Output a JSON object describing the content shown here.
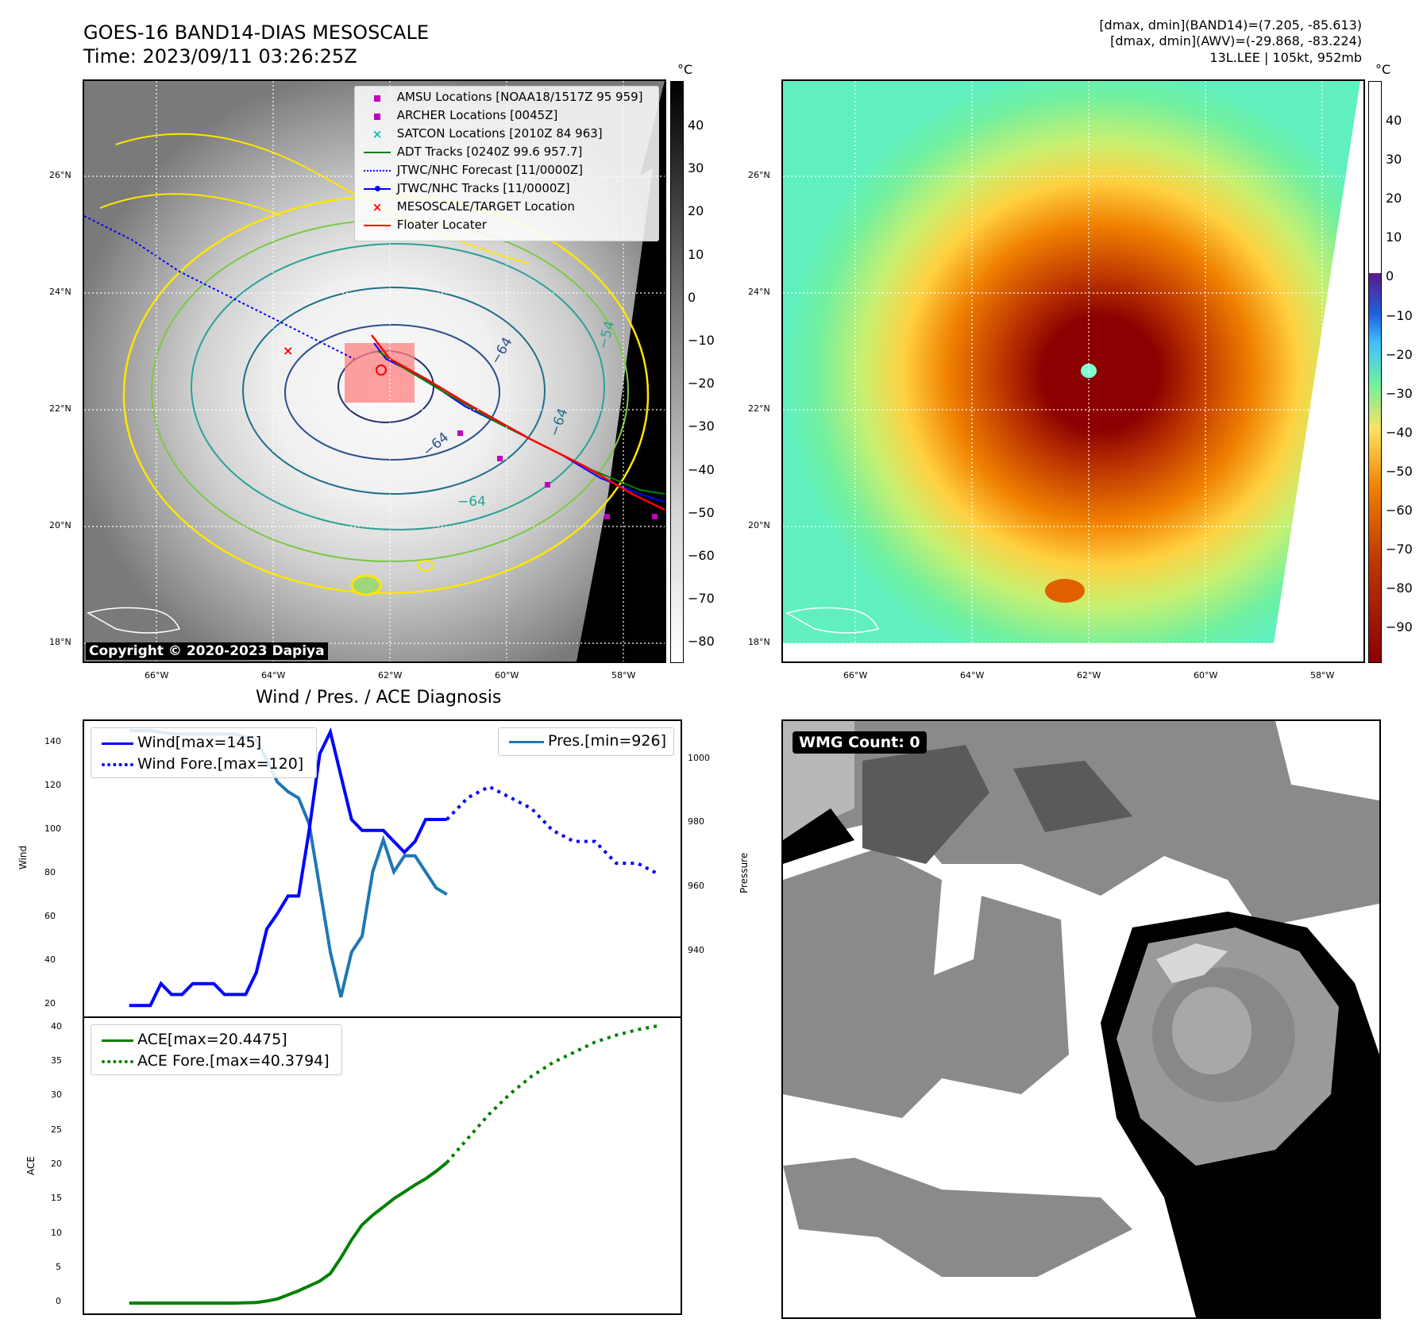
{
  "header": {
    "title_line1": "GOES-16 BAND14-DIAS MESOSCALE",
    "title_line2": "Time: 2023/09/11 03:26:25Z",
    "info_line1": "[dmax, dmin](BAND14)=(7.205, -85.613)",
    "info_line2": "[dmax, dmin](AWV)=(-29.868, -83.224)",
    "info_line3": "13L.LEE | 105kt, 952mb"
  },
  "map_axes": {
    "lat_labels": [
      "26°N",
      "24°N",
      "22°N",
      "20°N",
      "18°N"
    ],
    "lon_labels": [
      "66°W",
      "64°W",
      "62°W",
      "60°W",
      "58°W"
    ]
  },
  "panel_ir": {
    "colorbar_unit": "°C",
    "colorbar_ticks": [
      "40",
      "30",
      "20",
      "10",
      "0",
      "−10",
      "−20",
      "−30",
      "−40",
      "−50",
      "−60",
      "−70",
      "−80"
    ],
    "copyright": "Copyright © 2020-2023 Dapiya",
    "contour_labels": [
      "−64",
      "−64",
      "−64",
      "−54",
      "−64"
    ],
    "legend": [
      {
        "label": "AMSU Locations [NOAA18/1517Z 95 959]",
        "symbol": "square",
        "color": "#c000c0"
      },
      {
        "label": "ARCHER Locations [0045Z]",
        "symbol": "square",
        "color": "#c000c0"
      },
      {
        "label": "SATCON Locations [2010Z 84 963]",
        "symbol": "x",
        "color": "#00bfbf"
      },
      {
        "label": "ADT Tracks [0240Z 99.6 957.7]",
        "symbol": "line",
        "color": "#008000"
      },
      {
        "label": "JTWC/NHC Forecast [11/0000Z]",
        "symbol": "dotted",
        "color": "#0000ff"
      },
      {
        "label": "JTWC/NHC Tracks [11/0000Z]",
        "symbol": "line-dot",
        "color": "#0000ff"
      },
      {
        "label": "MESOSCALE/TARGET Location",
        "symbol": "x",
        "color": "#ff0000"
      },
      {
        "label": "Floater Locater",
        "symbol": "line",
        "color": "#ff0000"
      }
    ]
  },
  "panel_awv": {
    "colorbar_unit": "°C",
    "colorbar_ticks": [
      "40",
      "30",
      "20",
      "10",
      "0",
      "−10",
      "−20",
      "−30",
      "−40",
      "−50",
      "−60",
      "−70",
      "−80",
      "−90"
    ]
  },
  "diagnosis": {
    "title": "Wind / Pres. / ACE Diagnosis",
    "wind_ylabel": "Wind",
    "pres_ylabel": "Pressure",
    "ace_ylabel": "ACE",
    "wind_ticks": [
      "140",
      "120",
      "100",
      "80",
      "60",
      "40",
      "20"
    ],
    "pres_ticks": [
      "1000",
      "980",
      "960",
      "940"
    ],
    "ace_ticks": [
      "40",
      "35",
      "30",
      "25",
      "20",
      "15",
      "10",
      "5",
      "0"
    ],
    "legend_wind": "Wind[max=145]",
    "legend_wind_fore": "Wind Fore.[max=120]",
    "legend_pres": "Pres.[min=926]",
    "legend_ace": "ACE[max=20.4475]",
    "legend_ace_fore": "ACE Fore.[max=40.3794]",
    "colors": {
      "wind": "#0000ff",
      "pres": "#1f77b4",
      "ace": "#008000"
    }
  },
  "chart_data": [
    {
      "type": "line",
      "title": "Wind / Pres. / ACE Diagnosis",
      "ylabel": "Wind",
      "ylim": [
        15,
        150
      ],
      "series": [
        {
          "name": "Wind[max=145]",
          "x": [
            0,
            1,
            2,
            3,
            4,
            5,
            6,
            7,
            8,
            9,
            10,
            11,
            12,
            13,
            14,
            15,
            16,
            17,
            18,
            19,
            20,
            21,
            22,
            23,
            24,
            25,
            26,
            27,
            28,
            29,
            30
          ],
          "values": [
            20,
            20,
            20,
            30,
            25,
            25,
            30,
            30,
            30,
            25,
            25,
            25,
            35,
            55,
            62,
            70,
            70,
            100,
            135,
            145,
            125,
            105,
            100,
            100,
            100,
            95,
            90,
            95,
            105,
            105,
            105
          ]
        },
        {
          "name": "Wind Fore.[max=120]",
          "x": [
            30,
            32,
            34,
            36,
            38,
            40,
            42,
            44,
            46,
            48,
            50
          ],
          "values": [
            105,
            115,
            120,
            115,
            110,
            100,
            95,
            95,
            85,
            85,
            80
          ]
        }
      ]
    },
    {
      "type": "line",
      "ylabel": "Pressure",
      "ylim": [
        920,
        1012
      ],
      "series": [
        {
          "name": "Pres.[min=926]",
          "x": [
            0,
            2,
            4,
            6,
            8,
            10,
            12,
            13,
            14,
            15,
            16,
            17,
            18,
            19,
            20,
            21,
            22,
            23,
            24,
            25,
            26,
            27,
            28,
            29,
            30
          ],
          "values": [
            1009,
            1009,
            1008,
            1008,
            1008,
            1008,
            1006,
            1000,
            993,
            990,
            988,
            980,
            960,
            940,
            926,
            940,
            945,
            965,
            975,
            965,
            970,
            970,
            965,
            960,
            958
          ]
        }
      ]
    },
    {
      "type": "line",
      "ylabel": "ACE",
      "ylim": [
        -1.5,
        41.5
      ],
      "series": [
        {
          "name": "ACE[max=20.4475]",
          "x": [
            0,
            5,
            10,
            12,
            13,
            14,
            15,
            16,
            17,
            18,
            19,
            20,
            21,
            22,
            23,
            24,
            25,
            26,
            27,
            28,
            29,
            30
          ],
          "values": [
            0,
            0,
            0,
            0.1,
            0.3,
            0.6,
            1.2,
            1.8,
            2.5,
            3.2,
            4.3,
            6.6,
            9.2,
            11.4,
            12.8,
            14.0,
            15.2,
            16.2,
            17.2,
            18.1,
            19.2,
            20.4475
          ]
        },
        {
          "name": "ACE Fore.[max=40.3794]",
          "x": [
            30,
            32,
            34,
            36,
            38,
            40,
            42,
            44,
            46,
            48,
            50
          ],
          "values": [
            20.4475,
            24,
            27.5,
            30.5,
            33,
            35,
            36.5,
            38,
            39,
            39.8,
            40.3794
          ]
        }
      ]
    }
  ],
  "wmg": {
    "label": "WMG Count: 0"
  }
}
